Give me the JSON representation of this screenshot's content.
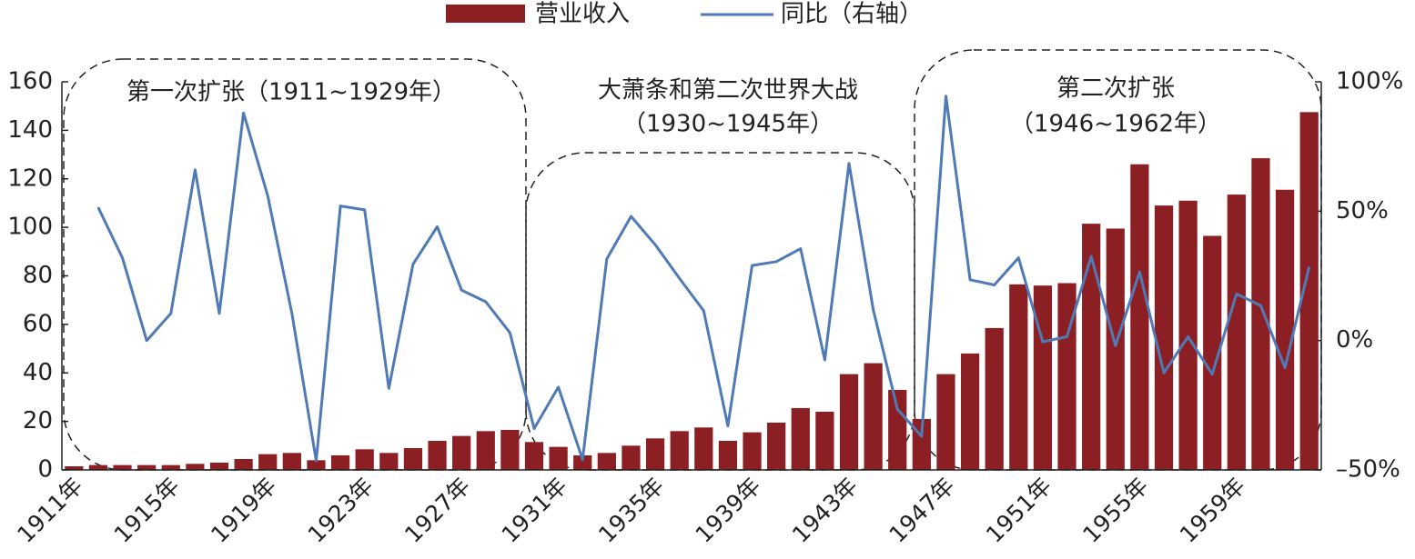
{
  "chart_data": {
    "type": "bar-line",
    "categories": [
      "1911年",
      null,
      null,
      null,
      "1915年",
      null,
      null,
      null,
      "1919年",
      null,
      null,
      null,
      "1923年",
      null,
      null,
      null,
      "1927年",
      null,
      null,
      null,
      "1931年",
      null,
      null,
      null,
      "1935年",
      null,
      null,
      null,
      "1939年",
      null,
      null,
      null,
      "1943年",
      null,
      null,
      null,
      "1947年",
      null,
      null,
      null,
      "1951年",
      null,
      null,
      null,
      "1955年",
      null,
      null,
      null,
      "1959年",
      null,
      null,
      null
    ],
    "series": [
      {
        "name": "营业收入",
        "type": "bar",
        "color": "#8b1f24",
        "values": [
          1.5,
          2,
          2,
          2,
          2,
          2.5,
          3,
          4.5,
          6.5,
          7,
          4,
          6,
          8.5,
          7,
          9,
          12,
          14,
          16,
          16.5,
          11.5,
          9.5,
          6,
          7,
          10,
          13,
          16,
          17.5,
          12,
          15.5,
          19.5,
          25.5,
          24,
          39.5,
          44,
          33,
          21,
          39.5,
          48,
          58.5,
          76.5,
          76,
          77,
          101.5,
          99.5,
          126,
          109,
          111,
          96.5,
          113.5,
          128.5,
          115.5,
          147.5
        ]
      },
      {
        "name": "同比（右轴）",
        "type": "line",
        "axis": "y2",
        "color": "#4f7ab5",
        "values": [
          null,
          51.5,
          32,
          0,
          10.5,
          66,
          10.5,
          88,
          56,
          10.5,
          -46.5,
          52,
          50.5,
          -18.5,
          29.5,
          44,
          19.5,
          15,
          3,
          -34,
          -18,
          -46,
          31.5,
          48,
          37,
          24,
          11.5,
          -33,
          29,
          30.5,
          35.5,
          -7.5,
          68.5,
          12,
          -26.5,
          -37,
          94.5,
          23.5,
          21.5,
          32,
          -0.5,
          1.5,
          32.5,
          -2,
          26.5,
          -12.5,
          1.5,
          -13,
          18,
          13.5,
          -10.5,
          28.5
        ]
      }
    ],
    "ylim": [
      0,
      160
    ],
    "yticks": [
      0,
      20,
      40,
      60,
      80,
      100,
      120,
      140,
      160
    ],
    "y2lim": [
      -50,
      100
    ],
    "y2ticks": [
      {
        "value": -50,
        "label": "–50%"
      },
      {
        "value": 0,
        "label": "0%"
      },
      {
        "value": 50,
        "label": "50%"
      },
      {
        "value": 100,
        "label": "100%"
      }
    ],
    "legend": "top",
    "annotations": [
      [
        "第一次扩张（1911~1929年）"
      ],
      [
        "大萧条和第二次世界大战",
        "（1930~1945年）"
      ],
      [
        "第二次扩张",
        "（1946~1962年）"
      ]
    ]
  }
}
